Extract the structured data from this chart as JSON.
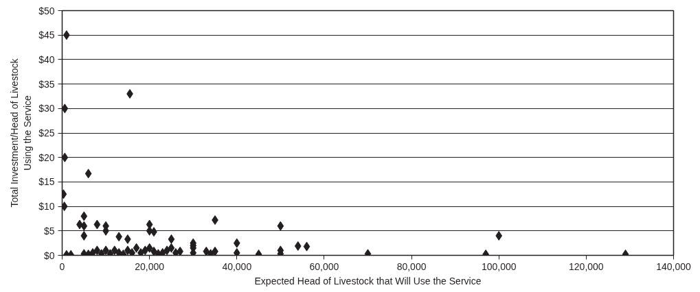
{
  "chart_data": {
    "type": "scatter",
    "xlabel": "Expected Head of Livestock that Will Use the Service",
    "ylabel": "Total Investment/Head of Livestock Using the Service",
    "x": [
      1000,
      600,
      600,
      300,
      500,
      15500,
      6000,
      4000,
      5000,
      5000,
      5000,
      8000,
      10000,
      10000,
      13000,
      15000,
      20000,
      20000,
      21000,
      25000,
      30000,
      35000,
      40000,
      50000,
      50000,
      54000,
      56000,
      70000,
      97000,
      100000,
      129000,
      1000,
      2000,
      5000,
      6000,
      7000,
      8000,
      9000,
      10000,
      11000,
      12000,
      13000,
      14000,
      15000,
      16000,
      17000,
      18000,
      19000,
      20000,
      21000,
      22000,
      23000,
      24000,
      25000,
      26000,
      27000,
      30000,
      30000,
      30000,
      33000,
      34000,
      35000,
      40000,
      45000,
      50000
    ],
    "values": [
      45,
      30,
      20,
      12.5,
      10,
      33,
      16.7,
      6.3,
      8,
      6,
      4,
      6.3,
      6,
      5,
      3.8,
      3.3,
      6.3,
      5,
      4.8,
      3.3,
      2.5,
      7.2,
      2.5,
      6,
      1,
      1.9,
      1.8,
      0.3,
      0.2,
      4,
      0.2,
      0.1,
      0.1,
      0.3,
      0.2,
      0.5,
      1,
      0.3,
      1,
      0.3,
      1,
      0.5,
      0.2,
      1,
      0.5,
      1.5,
      0.5,
      1,
      1.5,
      0.8,
      0.3,
      0.5,
      1,
      1.5,
      0.5,
      0.8,
      1.5,
      0.5,
      2,
      0.8,
      0.3,
      0.8,
      0.5,
      0.2,
      0.3
    ],
    "color": "#231f20",
    "marker": "diamond",
    "xlim": [
      0,
      140000
    ],
    "ylim": [
      0,
      50
    ],
    "xticks": [
      {
        "value": 0,
        "label": "0"
      },
      {
        "value": 20000,
        "label": "20,000"
      },
      {
        "value": 40000,
        "label": "40,000"
      },
      {
        "value": 60000,
        "label": "60,000"
      },
      {
        "value": 80000,
        "label": "80,000"
      },
      {
        "value": 100000,
        "label": "100,000"
      },
      {
        "value": 120000,
        "label": "120,000"
      },
      {
        "value": 140000,
        "label": "140,000"
      }
    ],
    "yticks": [
      {
        "value": 0,
        "label": "$0"
      },
      {
        "value": 5,
        "label": "$5"
      },
      {
        "value": 10,
        "label": "$10"
      },
      {
        "value": 15,
        "label": "$15"
      },
      {
        "value": 20,
        "label": "$20"
      },
      {
        "value": 25,
        "label": "$25"
      },
      {
        "value": 30,
        "label": "$30"
      },
      {
        "value": 35,
        "label": "$35"
      },
      {
        "value": 40,
        "label": "$40"
      },
      {
        "value": 45,
        "label": "$45"
      },
      {
        "value": 50,
        "label": "$50"
      }
    ],
    "grid": "y"
  }
}
